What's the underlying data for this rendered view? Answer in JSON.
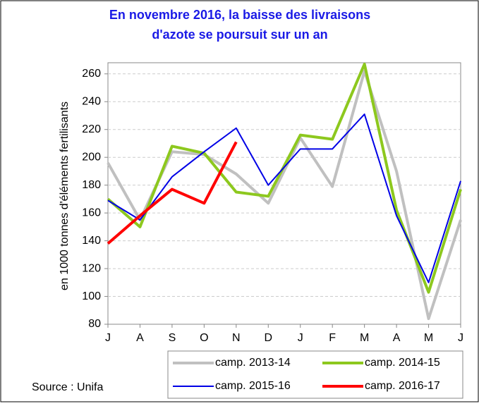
{
  "chart_data": {
    "type": "line",
    "title": "En novembre 2016, la baisse des livraisons",
    "subtitle": "d'azote se poursuit sur un an",
    "y_label": "en 1000 tonnes d'éléments fertilisants",
    "source": "Source : Unifa",
    "categories": [
      "J",
      "A",
      "S",
      "O",
      "N",
      "D",
      "J",
      "F",
      "M",
      "A",
      "M",
      "J"
    ],
    "series": [
      {
        "name": "camp. 2013-14",
        "color": "#c0c0c0",
        "width": 4,
        "values": [
          196,
          155,
          204,
          202,
          188,
          167,
          214,
          179,
          262,
          190,
          84,
          155
        ]
      },
      {
        "name": "camp. 2014-15",
        "color": "#8dc81e",
        "width": 4,
        "values": [
          170,
          150,
          208,
          203,
          175,
          172,
          216,
          213,
          267,
          162,
          103,
          177
        ]
      },
      {
        "name": "camp. 2015-16",
        "color": "#0000e6",
        "width": 2,
        "values": [
          169,
          155,
          186,
          204,
          221,
          180,
          206,
          206,
          231,
          158,
          110,
          183
        ]
      },
      {
        "name": "camp. 2016-17",
        "color": "#ff0000",
        "width": 4,
        "values": [
          138,
          158,
          177,
          167,
          211,
          null,
          null,
          null,
          null,
          null,
          null,
          null
        ]
      }
    ],
    "ylim": [
      80,
      268
    ],
    "yticks": [
      80,
      100,
      120,
      140,
      160,
      180,
      200,
      220,
      240,
      260
    ],
    "grid": true
  }
}
